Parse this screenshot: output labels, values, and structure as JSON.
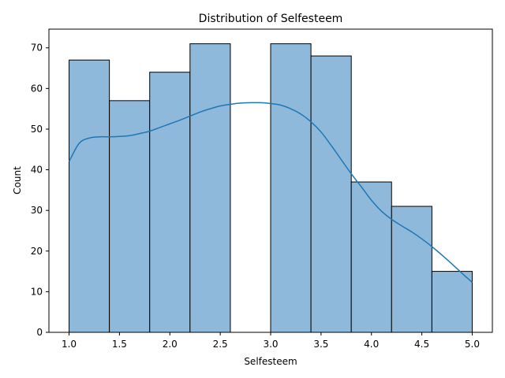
{
  "chart_data": {
    "type": "bar",
    "title": "Distribution of Selfesteem",
    "xlabel": "Selfesteem",
    "ylabel": "Count",
    "bin_edges": [
      1.0,
      1.4,
      1.8,
      2.2,
      2.6,
      3.0,
      3.4,
      3.8,
      4.2,
      4.6,
      5.0
    ],
    "values": [
      67,
      57,
      64,
      71,
      0,
      71,
      68,
      37,
      31,
      15
    ],
    "kde": {
      "x": [
        1.0,
        1.1,
        1.2,
        1.3,
        1.4,
        1.5,
        1.6,
        1.7,
        1.8,
        1.9,
        2.0,
        2.1,
        2.2,
        2.3,
        2.4,
        2.5,
        2.6,
        2.7,
        2.8,
        2.9,
        3.0,
        3.1,
        3.2,
        3.3,
        3.4,
        3.5,
        3.6,
        3.7,
        3.8,
        3.9,
        4.0,
        4.1,
        4.2,
        4.3,
        4.4,
        4.5,
        4.6,
        4.7,
        4.8,
        4.9,
        5.0
      ],
      "y": [
        42,
        46.5,
        47.8,
        48.1,
        48.1,
        48.2,
        48.4,
        48.9,
        49.5,
        50.4,
        51.3,
        52.2,
        53.2,
        54.2,
        55.0,
        55.7,
        56.1,
        56.4,
        56.5,
        56.5,
        56.3,
        55.9,
        55.0,
        53.7,
        51.8,
        49.3,
        46.0,
        42.5,
        39.0,
        35.8,
        32.5,
        29.8,
        27.8,
        26.2,
        24.7,
        23.0,
        21.1,
        19.0,
        16.8,
        14.5,
        12.3
      ]
    },
    "xlim": [
      0.8,
      5.2
    ],
    "ylim": [
      0,
      74.6
    ],
    "xticks": [
      1.0,
      1.5,
      2.0,
      2.5,
      3.0,
      3.5,
      4.0,
      4.5,
      5.0
    ],
    "xtick_labels": [
      "1.0",
      "1.5",
      "2.0",
      "2.5",
      "3.0",
      "3.5",
      "4.0",
      "4.5",
      "5.0"
    ],
    "yticks": [
      0,
      10,
      20,
      30,
      40,
      50,
      60,
      70
    ],
    "ytick_labels": [
      "0",
      "10",
      "20",
      "30",
      "40",
      "50",
      "60",
      "70"
    ],
    "colors": {
      "bar_fill": "#8fb9db",
      "bar_edge": "#000000",
      "kde_line": "#1f77b4"
    },
    "grid": false
  }
}
